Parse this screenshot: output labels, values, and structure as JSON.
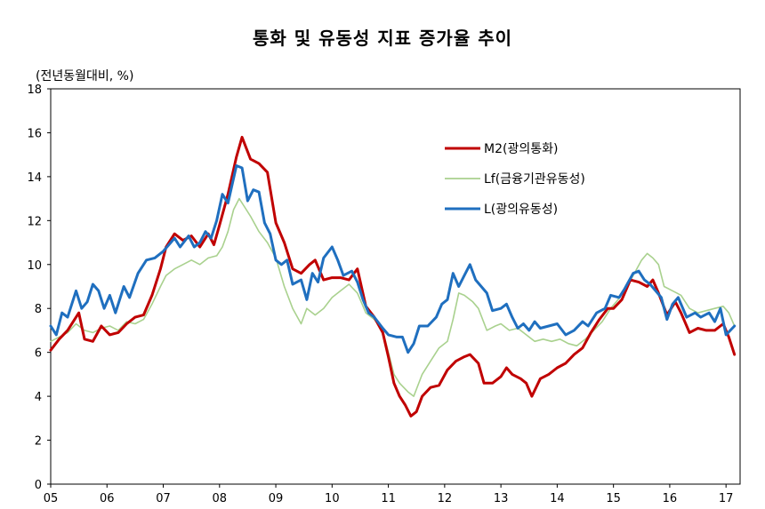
{
  "chart_data": {
    "type": "line",
    "title": "통화 및 유동성 지표 증가율 추이",
    "ylabel": "(전년동월대비, %)",
    "xlabel": "",
    "ylim": [
      0,
      18
    ],
    "yticks": [
      0,
      2,
      4,
      6,
      8,
      10,
      12,
      14,
      16,
      18
    ],
    "xlim": [
      2005.0,
      2017.25
    ],
    "xticks": [
      "05",
      "06",
      "07",
      "08",
      "09",
      "10",
      "11",
      "12",
      "13",
      "14",
      "15",
      "16",
      "17"
    ],
    "legend_position": "top-right",
    "series": [
      {
        "name": "M2(광의통화)",
        "color": "#c00000",
        "points": [
          [
            2005.0,
            6.1
          ],
          [
            2005.15,
            6.6
          ],
          [
            2005.3,
            7.0
          ],
          [
            2005.5,
            7.8
          ],
          [
            2005.6,
            6.6
          ],
          [
            2005.75,
            6.5
          ],
          [
            2005.9,
            7.2
          ],
          [
            2006.05,
            6.8
          ],
          [
            2006.2,
            6.9
          ],
          [
            2006.35,
            7.3
          ],
          [
            2006.5,
            7.6
          ],
          [
            2006.65,
            7.7
          ],
          [
            2006.8,
            8.6
          ],
          [
            2006.95,
            9.8
          ],
          [
            2007.05,
            10.8
          ],
          [
            2007.2,
            11.4
          ],
          [
            2007.35,
            11.1
          ],
          [
            2007.5,
            11.3
          ],
          [
            2007.65,
            10.8
          ],
          [
            2007.8,
            11.4
          ],
          [
            2007.9,
            10.9
          ],
          [
            2008.0,
            11.8
          ],
          [
            2008.15,
            13.2
          ],
          [
            2008.3,
            14.9
          ],
          [
            2008.4,
            15.8
          ],
          [
            2008.55,
            14.8
          ],
          [
            2008.7,
            14.6
          ],
          [
            2008.85,
            14.2
          ],
          [
            2009.0,
            11.9
          ],
          [
            2009.15,
            11.0
          ],
          [
            2009.3,
            9.8
          ],
          [
            2009.45,
            9.6
          ],
          [
            2009.6,
            10.0
          ],
          [
            2009.7,
            10.2
          ],
          [
            2009.85,
            9.3
          ],
          [
            2010.0,
            9.4
          ],
          [
            2010.15,
            9.4
          ],
          [
            2010.3,
            9.3
          ],
          [
            2010.45,
            9.8
          ],
          [
            2010.6,
            8.1
          ],
          [
            2010.75,
            7.6
          ],
          [
            2010.9,
            6.9
          ],
          [
            2011.0,
            5.8
          ],
          [
            2011.1,
            4.6
          ],
          [
            2011.2,
            4.0
          ],
          [
            2011.3,
            3.6
          ],
          [
            2011.4,
            3.1
          ],
          [
            2011.5,
            3.3
          ],
          [
            2011.6,
            4.0
          ],
          [
            2011.75,
            4.4
          ],
          [
            2011.9,
            4.5
          ],
          [
            2012.05,
            5.2
          ],
          [
            2012.2,
            5.6
          ],
          [
            2012.35,
            5.8
          ],
          [
            2012.45,
            5.9
          ],
          [
            2012.6,
            5.5
          ],
          [
            2012.7,
            4.6
          ],
          [
            2012.85,
            4.6
          ],
          [
            2013.0,
            4.9
          ],
          [
            2013.1,
            5.3
          ],
          [
            2013.2,
            5.0
          ],
          [
            2013.35,
            4.8
          ],
          [
            2013.45,
            4.6
          ],
          [
            2013.55,
            4.0
          ],
          [
            2013.7,
            4.8
          ],
          [
            2013.85,
            5.0
          ],
          [
            2014.0,
            5.3
          ],
          [
            2014.15,
            5.5
          ],
          [
            2014.3,
            5.9
          ],
          [
            2014.45,
            6.2
          ],
          [
            2014.6,
            6.9
          ],
          [
            2014.75,
            7.5
          ],
          [
            2014.9,
            8.0
          ],
          [
            2015.0,
            8.0
          ],
          [
            2015.15,
            8.4
          ],
          [
            2015.3,
            9.3
          ],
          [
            2015.45,
            9.2
          ],
          [
            2015.6,
            9.0
          ],
          [
            2015.7,
            9.3
          ],
          [
            2015.8,
            8.7
          ],
          [
            2015.95,
            7.7
          ],
          [
            2016.1,
            8.3
          ],
          [
            2016.2,
            7.8
          ],
          [
            2016.35,
            6.9
          ],
          [
            2016.5,
            7.1
          ],
          [
            2016.65,
            7.0
          ],
          [
            2016.8,
            7.0
          ],
          [
            2016.95,
            7.3
          ],
          [
            2017.05,
            6.7
          ],
          [
            2017.15,
            5.9
          ]
        ]
      },
      {
        "name": "Lf(금융기관유동성)",
        "color": "#a9d18e",
        "points": [
          [
            2005.0,
            6.5
          ],
          [
            2005.15,
            6.7
          ],
          [
            2005.3,
            6.9
          ],
          [
            2005.45,
            7.3
          ],
          [
            2005.6,
            7.0
          ],
          [
            2005.75,
            6.9
          ],
          [
            2005.9,
            7.1
          ],
          [
            2006.05,
            7.2
          ],
          [
            2006.2,
            7.0
          ],
          [
            2006.35,
            7.4
          ],
          [
            2006.5,
            7.3
          ],
          [
            2006.65,
            7.5
          ],
          [
            2006.8,
            8.2
          ],
          [
            2006.95,
            9.0
          ],
          [
            2007.05,
            9.5
          ],
          [
            2007.2,
            9.8
          ],
          [
            2007.35,
            10.0
          ],
          [
            2007.5,
            10.2
          ],
          [
            2007.65,
            10.0
          ],
          [
            2007.8,
            10.3
          ],
          [
            2007.95,
            10.4
          ],
          [
            2008.05,
            10.8
          ],
          [
            2008.15,
            11.5
          ],
          [
            2008.25,
            12.5
          ],
          [
            2008.35,
            13.0
          ],
          [
            2008.45,
            12.6
          ],
          [
            2008.55,
            12.2
          ],
          [
            2008.7,
            11.5
          ],
          [
            2008.85,
            11.0
          ],
          [
            2009.0,
            10.3
          ],
          [
            2009.15,
            9.0
          ],
          [
            2009.3,
            8.0
          ],
          [
            2009.45,
            7.3
          ],
          [
            2009.55,
            8.0
          ],
          [
            2009.7,
            7.7
          ],
          [
            2009.85,
            8.0
          ],
          [
            2010.0,
            8.5
          ],
          [
            2010.15,
            8.8
          ],
          [
            2010.3,
            9.1
          ],
          [
            2010.45,
            8.7
          ],
          [
            2010.6,
            7.8
          ],
          [
            2010.75,
            7.5
          ],
          [
            2010.9,
            7.0
          ],
          [
            2011.0,
            6.0
          ],
          [
            2011.1,
            5.0
          ],
          [
            2011.2,
            4.6
          ],
          [
            2011.35,
            4.2
          ],
          [
            2011.45,
            4.0
          ],
          [
            2011.6,
            5.0
          ],
          [
            2011.75,
            5.6
          ],
          [
            2011.9,
            6.2
          ],
          [
            2012.05,
            6.5
          ],
          [
            2012.15,
            7.5
          ],
          [
            2012.25,
            8.7
          ],
          [
            2012.35,
            8.6
          ],
          [
            2012.5,
            8.3
          ],
          [
            2012.6,
            8.0
          ],
          [
            2012.75,
            7.0
          ],
          [
            2012.9,
            7.2
          ],
          [
            2013.0,
            7.3
          ],
          [
            2013.15,
            7.0
          ],
          [
            2013.3,
            7.1
          ],
          [
            2013.45,
            6.8
          ],
          [
            2013.6,
            6.5
          ],
          [
            2013.75,
            6.6
          ],
          [
            2013.9,
            6.5
          ],
          [
            2014.05,
            6.6
          ],
          [
            2014.2,
            6.4
          ],
          [
            2014.35,
            6.3
          ],
          [
            2014.5,
            6.6
          ],
          [
            2014.65,
            7.0
          ],
          [
            2014.8,
            7.4
          ],
          [
            2014.95,
            8.0
          ],
          [
            2015.05,
            8.3
          ],
          [
            2015.2,
            8.8
          ],
          [
            2015.35,
            9.5
          ],
          [
            2015.5,
            10.2
          ],
          [
            2015.6,
            10.5
          ],
          [
            2015.7,
            10.3
          ],
          [
            2015.8,
            10.0
          ],
          [
            2015.9,
            9.0
          ],
          [
            2016.05,
            8.8
          ],
          [
            2016.2,
            8.6
          ],
          [
            2016.35,
            8.0
          ],
          [
            2016.5,
            7.8
          ],
          [
            2016.65,
            7.9
          ],
          [
            2016.8,
            8.0
          ],
          [
            2016.95,
            8.1
          ],
          [
            2017.05,
            7.8
          ],
          [
            2017.15,
            7.2
          ]
        ]
      },
      {
        "name": "L(광의유동성)",
        "color": "#1f6fbf",
        "points": [
          [
            2005.0,
            7.2
          ],
          [
            2005.1,
            6.8
          ],
          [
            2005.2,
            7.8
          ],
          [
            2005.3,
            7.6
          ],
          [
            2005.45,
            8.8
          ],
          [
            2005.55,
            8.0
          ],
          [
            2005.65,
            8.3
          ],
          [
            2005.75,
            9.1
          ],
          [
            2005.85,
            8.8
          ],
          [
            2005.95,
            8.0
          ],
          [
            2006.05,
            8.6
          ],
          [
            2006.15,
            7.8
          ],
          [
            2006.3,
            9.0
          ],
          [
            2006.4,
            8.5
          ],
          [
            2006.55,
            9.6
          ],
          [
            2006.7,
            10.2
          ],
          [
            2006.85,
            10.3
          ],
          [
            2007.0,
            10.6
          ],
          [
            2007.1,
            10.9
          ],
          [
            2007.2,
            11.2
          ],
          [
            2007.3,
            10.8
          ],
          [
            2007.45,
            11.3
          ],
          [
            2007.55,
            10.8
          ],
          [
            2007.65,
            11.0
          ],
          [
            2007.75,
            11.5
          ],
          [
            2007.85,
            11.2
          ],
          [
            2007.95,
            12.0
          ],
          [
            2008.05,
            13.2
          ],
          [
            2008.15,
            12.8
          ],
          [
            2008.3,
            14.5
          ],
          [
            2008.4,
            14.4
          ],
          [
            2008.5,
            12.9
          ],
          [
            2008.6,
            13.4
          ],
          [
            2008.7,
            13.3
          ],
          [
            2008.8,
            11.9
          ],
          [
            2008.9,
            11.4
          ],
          [
            2009.0,
            10.2
          ],
          [
            2009.1,
            10.0
          ],
          [
            2009.2,
            10.2
          ],
          [
            2009.3,
            9.1
          ],
          [
            2009.45,
            9.3
          ],
          [
            2009.55,
            8.4
          ],
          [
            2009.65,
            9.6
          ],
          [
            2009.75,
            9.2
          ],
          [
            2009.85,
            10.3
          ],
          [
            2010.0,
            10.8
          ],
          [
            2010.1,
            10.2
          ],
          [
            2010.2,
            9.5
          ],
          [
            2010.35,
            9.7
          ],
          [
            2010.45,
            9.2
          ],
          [
            2010.55,
            8.4
          ],
          [
            2010.65,
            7.8
          ],
          [
            2010.75,
            7.6
          ],
          [
            2010.9,
            7.1
          ],
          [
            2011.0,
            6.8
          ],
          [
            2011.15,
            6.7
          ],
          [
            2011.25,
            6.7
          ],
          [
            2011.35,
            6.0
          ],
          [
            2011.45,
            6.4
          ],
          [
            2011.55,
            7.2
          ],
          [
            2011.7,
            7.2
          ],
          [
            2011.85,
            7.6
          ],
          [
            2011.95,
            8.2
          ],
          [
            2012.05,
            8.4
          ],
          [
            2012.15,
            9.6
          ],
          [
            2012.25,
            9.0
          ],
          [
            2012.35,
            9.5
          ],
          [
            2012.45,
            10.0
          ],
          [
            2012.55,
            9.3
          ],
          [
            2012.65,
            9.0
          ],
          [
            2012.75,
            8.7
          ],
          [
            2012.85,
            7.9
          ],
          [
            2013.0,
            8.0
          ],
          [
            2013.1,
            8.2
          ],
          [
            2013.2,
            7.6
          ],
          [
            2013.3,
            7.1
          ],
          [
            2013.4,
            7.3
          ],
          [
            2013.5,
            7.0
          ],
          [
            2013.6,
            7.4
          ],
          [
            2013.7,
            7.1
          ],
          [
            2013.85,
            7.2
          ],
          [
            2014.0,
            7.3
          ],
          [
            2014.15,
            6.8
          ],
          [
            2014.3,
            7.0
          ],
          [
            2014.45,
            7.4
          ],
          [
            2014.55,
            7.2
          ],
          [
            2014.7,
            7.8
          ],
          [
            2014.85,
            8.0
          ],
          [
            2014.95,
            8.6
          ],
          [
            2015.1,
            8.5
          ],
          [
            2015.2,
            8.9
          ],
          [
            2015.35,
            9.6
          ],
          [
            2015.45,
            9.7
          ],
          [
            2015.55,
            9.3
          ],
          [
            2015.65,
            9.1
          ],
          [
            2015.75,
            8.8
          ],
          [
            2015.85,
            8.5
          ],
          [
            2015.95,
            7.5
          ],
          [
            2016.05,
            8.2
          ],
          [
            2016.15,
            8.5
          ],
          [
            2016.3,
            7.6
          ],
          [
            2016.45,
            7.8
          ],
          [
            2016.55,
            7.6
          ],
          [
            2016.7,
            7.8
          ],
          [
            2016.8,
            7.4
          ],
          [
            2016.9,
            8.0
          ],
          [
            2017.0,
            6.8
          ],
          [
            2017.15,
            7.2
          ]
        ]
      }
    ]
  }
}
